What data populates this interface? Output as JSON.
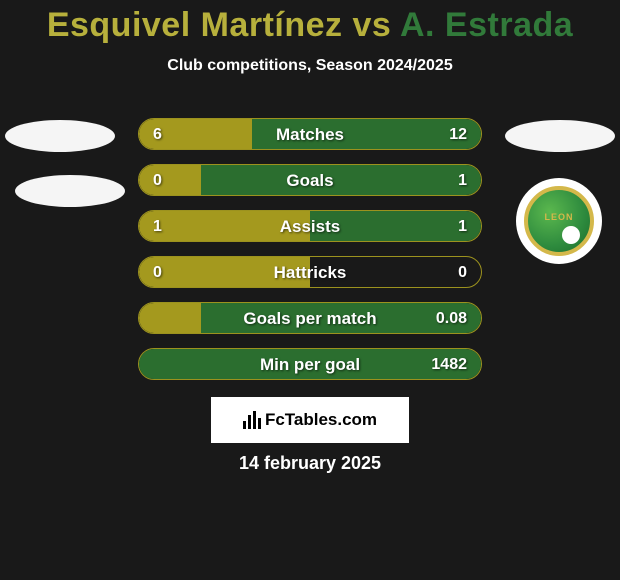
{
  "title": {
    "player1": "Esquivel Martínez",
    "vs": " vs ",
    "player2": "A. Estrada",
    "player1_color": "#b7b03c",
    "player2_color": "#317a3a"
  },
  "subtitle": "Club competitions, Season 2024/2025",
  "left_color": "#a4991e",
  "right_color": "#2b6e2f",
  "border_color": "#9c921e",
  "club_badge_text": "LEON",
  "rows": [
    {
      "stat": "Matches",
      "left": "6",
      "right": "12",
      "left_pct": 33,
      "right_pct": 67
    },
    {
      "stat": "Goals",
      "left": "0",
      "right": "1",
      "left_pct": 18,
      "right_pct": 82
    },
    {
      "stat": "Assists",
      "left": "1",
      "right": "1",
      "left_pct": 50,
      "right_pct": 50
    },
    {
      "stat": "Hattricks",
      "left": "0",
      "right": "0",
      "left_pct": 50,
      "right_pct": 0
    },
    {
      "stat": "Goals per match",
      "left": "",
      "right": "0.08",
      "left_pct": 18,
      "right_pct": 82
    },
    {
      "stat": "Min per goal",
      "left": "",
      "right": "1482",
      "left_pct": 0,
      "right_pct": 100
    }
  ],
  "footer_brand": "FcTables.com",
  "date": "14 february 2025"
}
